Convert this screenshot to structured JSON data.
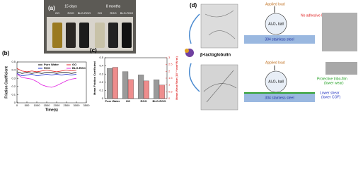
{
  "panel_a": {
    "label": "(a)",
    "groups": [
      "15 days",
      "8 months"
    ],
    "samples": [
      "GO",
      "RGO",
      "BLG-RGO",
      "GO",
      "RGO",
      "BLG-RGO"
    ]
  },
  "chart_data": [
    {
      "type": "line",
      "label": "(b)",
      "xlabel": "Time(s)",
      "ylabel": "Friction Coefficient",
      "x": [
        0,
        250,
        500,
        750,
        1000,
        1250,
        1500,
        1750,
        2000,
        2250,
        2500,
        2750,
        3000
      ],
      "xlim": [
        0,
        3500
      ],
      "xticks": [
        0,
        500,
        1000,
        1500,
        2000,
        2500,
        3000,
        3500
      ],
      "ylim": [
        0,
        0.5
      ],
      "yticks": [
        0.0,
        0.1,
        0.2,
        0.3,
        0.4,
        0.5
      ],
      "series": [
        {
          "name": "Pure Water",
          "color": "#000000",
          "values": [
            0.38,
            0.36,
            0.37,
            0.36,
            0.37,
            0.36,
            0.37,
            0.37,
            0.36,
            0.37,
            0.37,
            0.36,
            0.37
          ]
        },
        {
          "name": "GO",
          "color": "#e02020",
          "values": [
            0.42,
            0.39,
            0.38,
            0.39,
            0.38,
            0.39,
            0.4,
            0.39,
            0.38,
            0.39,
            0.4,
            0.39,
            0.4
          ]
        },
        {
          "name": "RGO",
          "color": "#2030d0",
          "values": [
            0.36,
            0.33,
            0.34,
            0.35,
            0.33,
            0.34,
            0.35,
            0.34,
            0.35,
            0.34,
            0.35,
            0.34,
            0.35
          ]
        },
        {
          "name": "BLG-RGO",
          "color": "#e020e0",
          "values": [
            0.35,
            0.31,
            0.3,
            0.29,
            0.26,
            0.22,
            0.2,
            0.19,
            0.21,
            0.24,
            0.27,
            0.29,
            0.3
          ]
        }
      ]
    },
    {
      "type": "bar",
      "label": "(c)",
      "categories": [
        "Pure Water",
        "GO",
        "RGO",
        "BLG-RGO"
      ],
      "ylim": [
        0,
        0.5
      ],
      "yticks": [
        0.0,
        0.1,
        0.2,
        0.3,
        0.4,
        0.5
      ],
      "y2lim": [
        0,
        3
      ],
      "y2ticks": [
        0.0,
        0.5,
        1.0,
        1.5,
        2.0,
        2.5,
        3.0
      ],
      "series": [
        {
          "name": "Mean Friction Coefficient",
          "color": "#9a9a9a",
          "values": [
            0.37,
            0.33,
            0.29,
            0.23
          ]
        },
        {
          "name": "Mean Wear Rate (10⁻⁴ mm³/N·m)",
          "color": "#e03030",
          "axis": "y2",
          "values": [
            2.3,
            1.4,
            1.3,
            1.0
          ]
        }
      ]
    }
  ],
  "panel_d": {
    "label": "(d)",
    "protein": "β-lactoglobulin",
    "top": {
      "load": "Applied load",
      "ball": "Al₂O₃ ball",
      "note": "No adhesive layer",
      "substrate": "304 stainless steel"
    },
    "bottom": {
      "load": "Applied load",
      "ball": "Al₂O₃ ball",
      "film": [
        "Protective tribo-film",
        "(lower wear)"
      ],
      "shear": [
        "Lower shear",
        "(lower COF)"
      ],
      "substrate": "304 stainless steel"
    }
  }
}
